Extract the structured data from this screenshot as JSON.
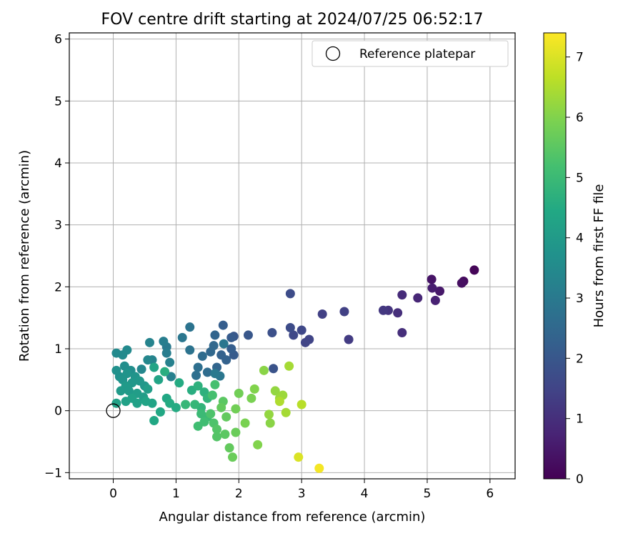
{
  "chart_data": {
    "type": "scatter",
    "title": "FOV centre drift starting at 2024/07/25 06:52:17",
    "xlabel": "Angular distance from reference (arcmin)",
    "ylabel": "Rotation from reference (arcmin)",
    "xlim": [
      -0.7,
      6.4
    ],
    "ylim": [
      -1.1,
      6.1
    ],
    "xticks": [
      0,
      1,
      2,
      3,
      4,
      5,
      6
    ],
    "yticks": [
      -1,
      0,
      1,
      2,
      3,
      4,
      5,
      6
    ],
    "grid": true,
    "legend": {
      "placement": "top-right",
      "entries": [
        "Reference platepar"
      ]
    },
    "reference_point": {
      "x": 0.0,
      "y": 0.0,
      "label": "Reference platepar"
    },
    "colorbar": {
      "label": "Hours from first FF file",
      "colormap": "viridis",
      "range": [
        0,
        7.4
      ],
      "ticks": [
        0,
        1,
        2,
        3,
        4,
        5,
        6,
        7
      ]
    },
    "points": [
      [
        5.75,
        2.27,
        0.1
      ],
      [
        5.58,
        2.09,
        0.2
      ],
      [
        5.55,
        2.06,
        0.3
      ],
      [
        5.07,
        2.12,
        0.4
      ],
      [
        5.2,
        1.93,
        0.5
      ],
      [
        5.08,
        1.98,
        0.6
      ],
      [
        5.13,
        1.78,
        0.7
      ],
      [
        4.85,
        1.82,
        0.8
      ],
      [
        4.6,
        1.87,
        0.9
      ],
      [
        4.6,
        1.26,
        1.0
      ],
      [
        4.53,
        1.58,
        1.0
      ],
      [
        4.38,
        1.62,
        1.1
      ],
      [
        4.3,
        1.62,
        1.2
      ],
      [
        3.75,
        1.15,
        1.3
      ],
      [
        3.68,
        1.6,
        1.4
      ],
      [
        3.33,
        1.56,
        1.4
      ],
      [
        3.12,
        1.15,
        1.5
      ],
      [
        3.06,
        1.1,
        1.5
      ],
      [
        3.0,
        1.3,
        1.6
      ],
      [
        2.87,
        1.22,
        1.6
      ],
      [
        2.82,
        1.34,
        1.7
      ],
      [
        2.82,
        1.89,
        1.7
      ],
      [
        2.53,
        1.26,
        1.8
      ],
      [
        2.55,
        0.68,
        1.9
      ],
      [
        2.15,
        1.22,
        2.0
      ],
      [
        1.92,
        1.2,
        2.0
      ],
      [
        1.88,
        1.18,
        2.1
      ],
      [
        1.92,
        0.9,
        2.1
      ],
      [
        1.88,
        1.0,
        2.2
      ],
      [
        1.75,
        1.38,
        2.2
      ],
      [
        1.8,
        0.82,
        2.3
      ],
      [
        1.72,
        0.9,
        2.3
      ],
      [
        1.65,
        0.7,
        2.4
      ],
      [
        1.62,
        1.22,
        2.4
      ],
      [
        1.6,
        1.05,
        2.5
      ],
      [
        1.55,
        0.95,
        2.5
      ],
      [
        1.5,
        0.62,
        2.6
      ],
      [
        1.42,
        0.88,
        2.6
      ],
      [
        1.35,
        0.7,
        2.7
      ],
      [
        1.32,
        0.57,
        2.7
      ],
      [
        1.22,
        1.35,
        2.8
      ],
      [
        1.22,
        0.98,
        2.8
      ],
      [
        1.1,
        1.18,
        2.9
      ],
      [
        1.76,
        1.08,
        2.9
      ],
      [
        1.7,
        0.56,
        2.9
      ],
      [
        1.62,
        0.6,
        3.0
      ],
      [
        0.85,
        1.03,
        3.0
      ],
      [
        0.8,
        1.12,
        3.1
      ],
      [
        0.85,
        0.93,
        3.1
      ],
      [
        0.9,
        0.78,
        3.2
      ],
      [
        0.92,
        0.55,
        3.2
      ],
      [
        0.62,
        0.82,
        3.3
      ],
      [
        0.58,
        1.1,
        3.3
      ],
      [
        0.55,
        0.82,
        3.4
      ],
      [
        0.45,
        0.67,
        3.4
      ],
      [
        0.22,
        0.98,
        3.5
      ],
      [
        0.15,
        0.9,
        3.5
      ],
      [
        0.05,
        0.93,
        3.5
      ],
      [
        0.28,
        0.65,
        3.6
      ],
      [
        0.18,
        0.72,
        3.6
      ],
      [
        0.1,
        0.55,
        3.7
      ],
      [
        0.05,
        0.65,
        3.7
      ],
      [
        0.15,
        0.5,
        3.8
      ],
      [
        0.22,
        0.6,
        3.8
      ],
      [
        0.35,
        0.55,
        3.8
      ],
      [
        0.3,
        0.45,
        3.9
      ],
      [
        0.42,
        0.48,
        3.9
      ],
      [
        0.5,
        0.4,
        3.9
      ],
      [
        0.2,
        0.4,
        4.0
      ],
      [
        0.12,
        0.32,
        4.0
      ],
      [
        0.25,
        0.32,
        4.0
      ],
      [
        0.38,
        0.28,
        4.1
      ],
      [
        0.55,
        0.35,
        4.1
      ],
      [
        0.48,
        0.22,
        4.1
      ],
      [
        0.3,
        0.2,
        4.2
      ],
      [
        0.2,
        0.15,
        4.2
      ],
      [
        0.05,
        0.12,
        4.2
      ],
      [
        0.38,
        0.12,
        4.2
      ],
      [
        0.52,
        0.15,
        4.3
      ],
      [
        0.62,
        0.12,
        4.3
      ],
      [
        0.72,
        0.5,
        4.3
      ],
      [
        0.65,
        0.7,
        4.3
      ],
      [
        0.75,
        -0.02,
        4.4
      ],
      [
        0.65,
        -0.16,
        4.4
      ],
      [
        0.85,
        0.2,
        4.4
      ],
      [
        0.9,
        0.12,
        4.5
      ],
      [
        1.0,
        0.05,
        4.5
      ],
      [
        1.05,
        0.45,
        4.5
      ],
      [
        0.82,
        0.63,
        4.6
      ],
      [
        1.25,
        0.33,
        4.6
      ],
      [
        1.35,
        0.4,
        4.7
      ],
      [
        1.45,
        0.3,
        4.7
      ],
      [
        1.5,
        0.2,
        4.8
      ],
      [
        1.4,
        0.05,
        4.8
      ],
      [
        1.3,
        0.1,
        4.9
      ],
      [
        1.15,
        0.1,
        4.9
      ],
      [
        1.4,
        -0.05,
        5.0
      ],
      [
        1.5,
        -0.1,
        5.0
      ],
      [
        1.45,
        -0.18,
        5.1
      ],
      [
        1.35,
        -0.25,
        5.1
      ],
      [
        1.58,
        0.25,
        5.2
      ],
      [
        1.62,
        0.42,
        5.2
      ],
      [
        1.55,
        -0.05,
        5.3
      ],
      [
        1.6,
        -0.2,
        5.3
      ],
      [
        1.65,
        -0.3,
        5.4
      ],
      [
        1.65,
        -0.42,
        5.4
      ],
      [
        1.78,
        -0.38,
        5.5
      ],
      [
        1.75,
        0.15,
        5.5
      ],
      [
        1.72,
        0.05,
        5.6
      ],
      [
        1.8,
        -0.1,
        5.6
      ],
      [
        1.85,
        -0.6,
        5.6
      ],
      [
        1.9,
        -0.75,
        5.7
      ],
      [
        1.95,
        -0.35,
        5.7
      ],
      [
        1.95,
        0.03,
        5.8
      ],
      [
        2.0,
        0.28,
        5.8
      ],
      [
        2.1,
        -0.2,
        5.9
      ],
      [
        2.2,
        0.2,
        5.9
      ],
      [
        2.25,
        0.35,
        6.0
      ],
      [
        2.3,
        -0.55,
        6.0
      ],
      [
        2.4,
        0.65,
        6.1
      ],
      [
        2.5,
        -0.2,
        6.1
      ],
      [
        2.48,
        -0.06,
        6.2
      ],
      [
        2.58,
        0.32,
        6.2
      ],
      [
        2.65,
        0.2,
        6.3
      ],
      [
        2.7,
        0.25,
        6.3
      ],
      [
        2.75,
        -0.03,
        6.4
      ],
      [
        2.8,
        0.72,
        6.4
      ],
      [
        2.65,
        0.15,
        6.5
      ],
      [
        3.0,
        0.1,
        6.6
      ],
      [
        2.95,
        -0.75,
        7.0
      ],
      [
        3.28,
        -0.93,
        7.3
      ]
    ]
  }
}
